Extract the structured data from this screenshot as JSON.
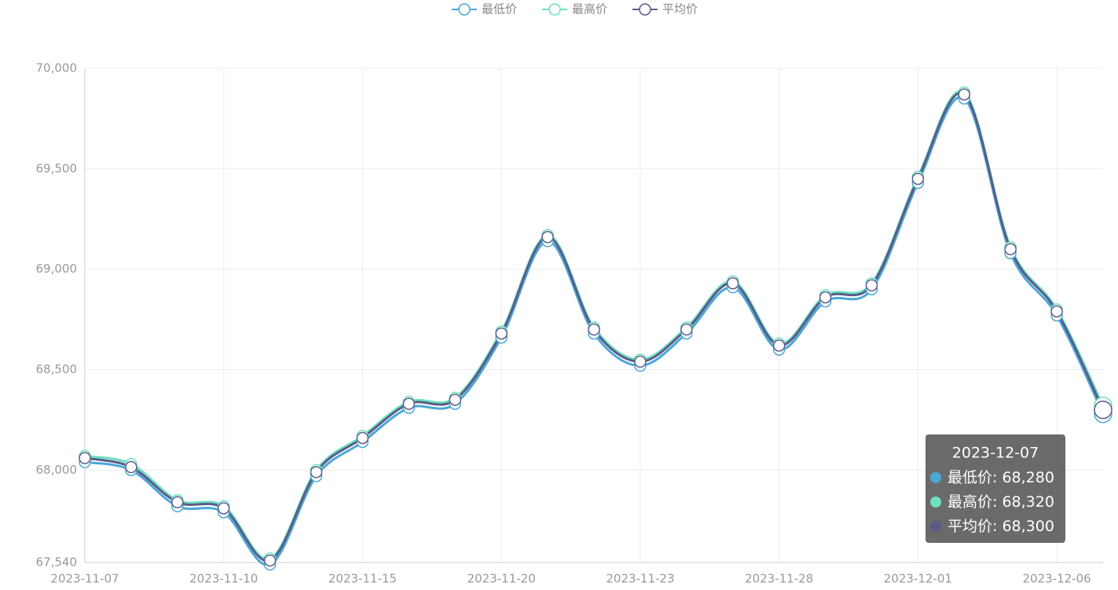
{
  "chart_data": {
    "type": "line",
    "categories": [
      "2023-11-07",
      null,
      null,
      "2023-11-10",
      null,
      null,
      "2023-11-15",
      null,
      null,
      "2023-11-20",
      null,
      null,
      "2023-11-23",
      null,
      null,
      "2023-11-28",
      null,
      null,
      "2023-12-01",
      null,
      null,
      "2023-12-06",
      null
    ],
    "series": [
      {
        "name": "最低价",
        "color": "#4aa8d8",
        "values": [
          68040,
          68000,
          67820,
          67790,
          67530,
          67970,
          68140,
          68310,
          68330,
          68660,
          69140,
          68680,
          68520,
          68680,
          68910,
          68600,
          68840,
          68900,
          69430,
          69850,
          69080,
          68770,
          68280
        ]
      },
      {
        "name": "最高价",
        "color": "#6ee0c0",
        "values": [
          68070,
          68030,
          67850,
          67820,
          67560,
          68000,
          68170,
          68340,
          68360,
          68690,
          69170,
          68710,
          68550,
          68710,
          68940,
          68630,
          68870,
          68930,
          69460,
          69880,
          69110,
          68800,
          68320
        ]
      },
      {
        "name": "平均价",
        "color": "#5b5b8a",
        "values": [
          68060,
          68015,
          67840,
          67810,
          67550,
          67990,
          68160,
          68330,
          68350,
          68680,
          69160,
          68700,
          68540,
          68700,
          68930,
          68620,
          68860,
          68920,
          69450,
          69870,
          69100,
          68790,
          68300
        ]
      }
    ],
    "ylim": [
      67540,
      70000
    ],
    "yticks": [
      {
        "value": 67540,
        "label": "67,540"
      },
      {
        "value": 68000,
        "label": "68,000"
      },
      {
        "value": 68500,
        "label": "68,500"
      },
      {
        "value": 69000,
        "label": "69,000"
      },
      {
        "value": 69500,
        "label": "69,500"
      },
      {
        "value": 70000,
        "label": "70,000"
      }
    ],
    "grid": true,
    "legend": "top",
    "tooltip": {
      "title": "2023-12-07",
      "value_labels": [
        "68,280",
        "68,320",
        "68,300"
      ]
    }
  }
}
